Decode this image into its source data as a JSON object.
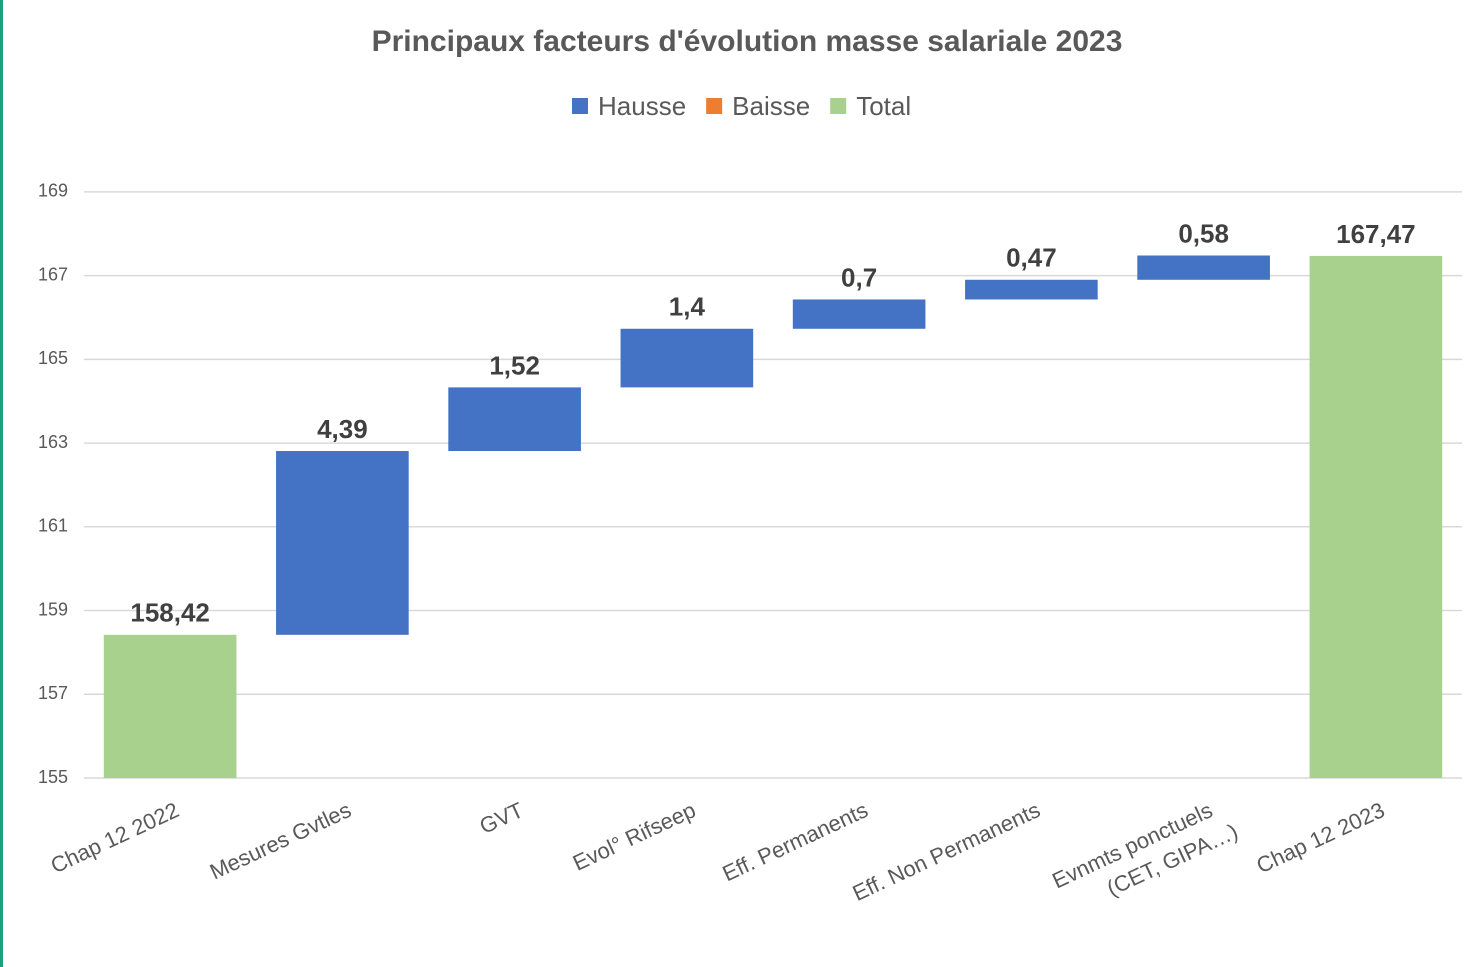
{
  "chart_data": {
    "type": "waterfall",
    "title": "Principaux facteurs d'évolution masse salariale 2023",
    "categories": [
      "Chap 12 2022",
      "Mesures Gvtles",
      "GVT",
      "Evol° Rifseep",
      "Eff. Permanents",
      "Eff. Non Permanents",
      "Evnmts ponctuels\n(CET, GIPA…)",
      "Chap 12 2023"
    ],
    "series": [
      {
        "name": "Hausse",
        "color": "#4472c4",
        "values": [
          null,
          4.39,
          1.52,
          1.4,
          0.7,
          0.47,
          0.58,
          null
        ],
        "value_labels": [
          null,
          "4,39",
          "1,52",
          "1,4",
          "0,7",
          "0,47",
          "0,58",
          null
        ]
      },
      {
        "name": "Baisse",
        "color": "#ed7d31",
        "values": [
          null,
          null,
          null,
          null,
          null,
          null,
          null,
          null
        ]
      },
      {
        "name": "Total",
        "color": "#a9d18e",
        "values": [
          158.42,
          null,
          null,
          null,
          null,
          null,
          null,
          167.47
        ],
        "value_labels": [
          "158,42",
          null,
          null,
          null,
          null,
          null,
          null,
          "167,47"
        ]
      }
    ],
    "ylim": [
      155,
      170
    ],
    "yticks": [
      155,
      157,
      159,
      161,
      163,
      165,
      167,
      169
    ],
    "grid": true,
    "legend": "top"
  }
}
